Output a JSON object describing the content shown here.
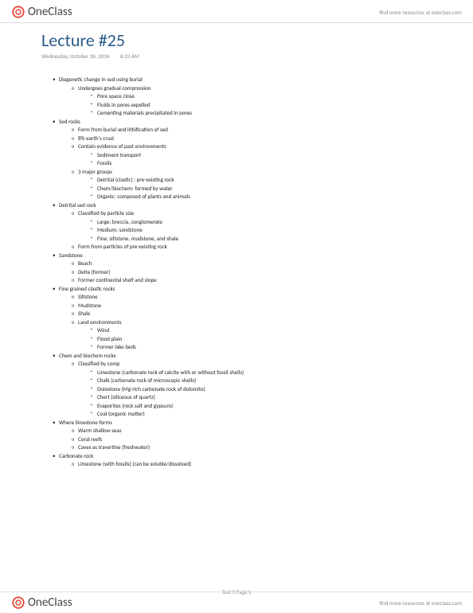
{
  "brand": {
    "name": "OneClass",
    "link_text": "find more resources at oneclass.com",
    "logo_color": "#e74c3c"
  },
  "lecture": {
    "title": "Lecture #25",
    "date": "Wednesday, October 26, 2016",
    "time": "6:33 AM"
  },
  "page_label": "Test 3 Page 1",
  "notes": [
    {
      "text": "Diagenetic change in sed using burial",
      "children": [
        {
          "text": "Undergoes gradual compression",
          "children": [
            {
              "text": "Pore space close"
            },
            {
              "text": "Fluids in pores expelled"
            },
            {
              "text": "Cementing materials precipitated in pores"
            }
          ]
        }
      ]
    },
    {
      "text": "Sed rocks",
      "children": [
        {
          "text": "Form from burial and lithification of sed"
        },
        {
          "text": "8% earth's crust"
        },
        {
          "text": "Contain evidence of past environments",
          "children": [
            {
              "text": "Sediment transport"
            },
            {
              "text": "Fossils"
            }
          ]
        },
        {
          "text": "3 major groups",
          "children": [
            {
              "text": "Detrital (clastic) : pre-existing rock"
            },
            {
              "text": "Chem/biochem: formed by water"
            },
            {
              "text": "Organic: composed of plants and animals"
            }
          ]
        }
      ]
    },
    {
      "text": "Detrital sed rock",
      "children": [
        {
          "text": "Classified by particle size",
          "children": [
            {
              "text": "Large: breccia, conglomerate"
            },
            {
              "text": "Medium: sandstone"
            },
            {
              "text": "Fine: siltstone, mudstone, and shale"
            }
          ]
        },
        {
          "text": "Form from particles of pre-existing rock"
        }
      ]
    },
    {
      "text": "Sandstone",
      "children": [
        {
          "text": "Beach"
        },
        {
          "text": "Delta (former)"
        },
        {
          "text": "Former continental shelf and slope"
        }
      ]
    },
    {
      "text": "Fine grained clastic rocks",
      "children": [
        {
          "text": "Siltstone"
        },
        {
          "text": "Mudstone"
        },
        {
          "text": "Shale"
        },
        {
          "text": "Land environments",
          "children": [
            {
              "text": "Wind"
            },
            {
              "text": "Flood plain"
            },
            {
              "text": "Former lake beds"
            }
          ]
        }
      ]
    },
    {
      "text": "Chem and biochem rocks",
      "children": [
        {
          "text": "Classified  by comp",
          "children": [
            {
              "text": "Limestone (carbonate rock of calcite with or without fossil shells)"
            },
            {
              "text": "Chalk (carbonate rock of microscopic shells)"
            },
            {
              "text": "Dolostone (Mg-rich carbonate rock of dolomite)"
            },
            {
              "text": "Chert (siliceous of quartz)"
            },
            {
              "text": "Evaporites (rock salt and gypsum)"
            },
            {
              "text": "Coal (organic matter)"
            }
          ]
        }
      ]
    },
    {
      "text": "Where limestone forms",
      "children": [
        {
          "text": "Warm shallow seas"
        },
        {
          "text": "Coral reefs"
        },
        {
          "text": "Caves as travertine (freshwater)"
        }
      ]
    },
    {
      "text": "Carbonate rock",
      "children": [
        {
          "text": "Limestone (with fossils) (can be soluble/dissolved)"
        }
      ]
    }
  ]
}
